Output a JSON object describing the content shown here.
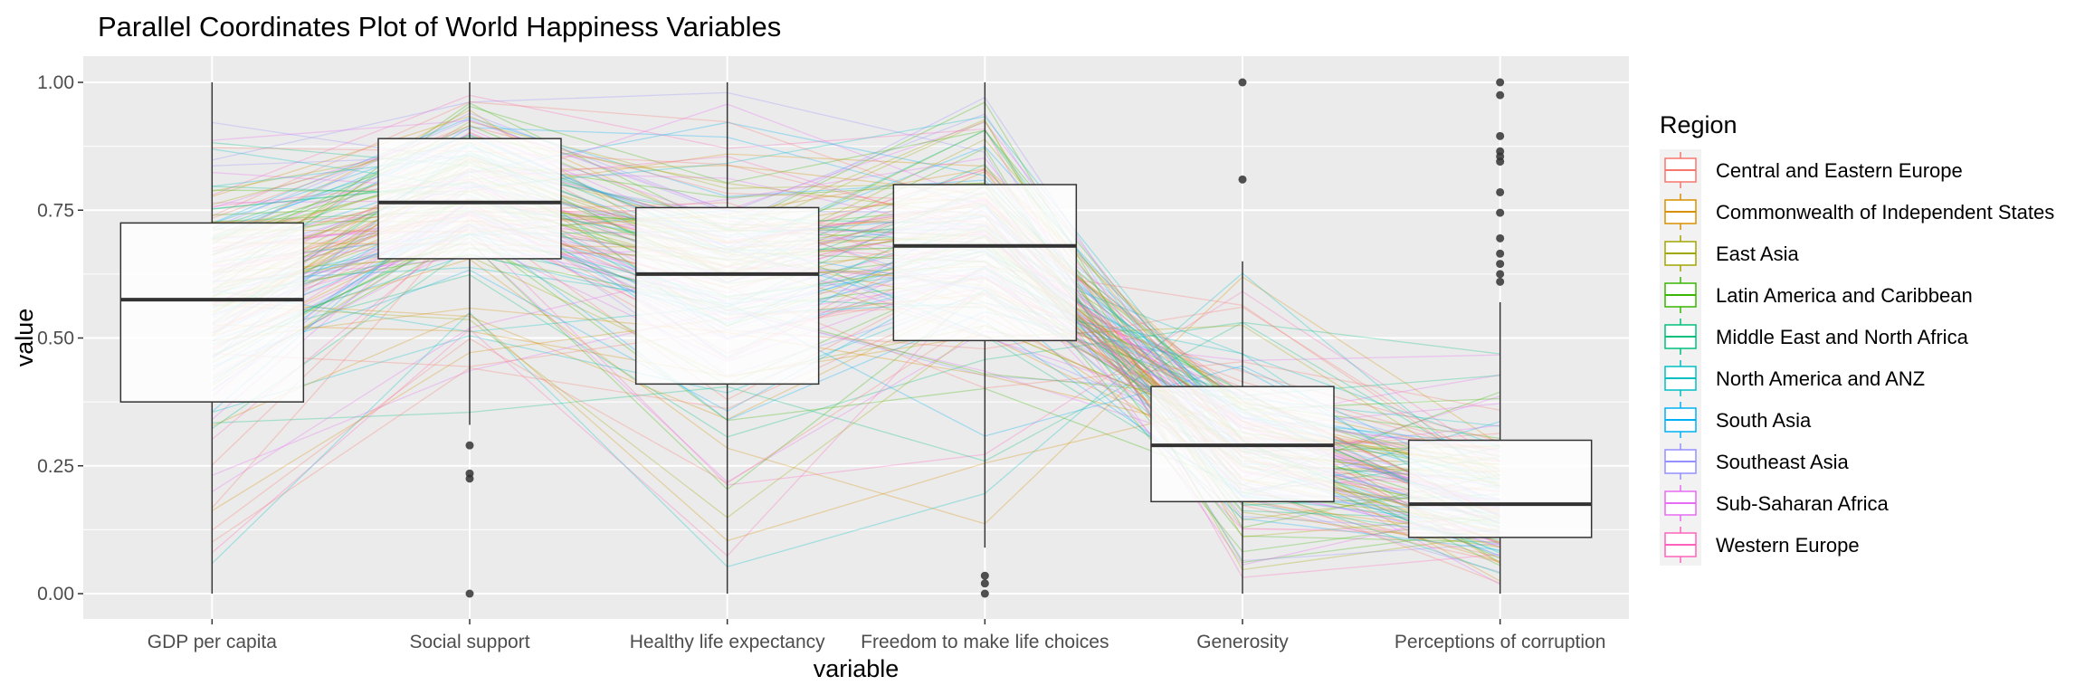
{
  "chart_data": {
    "type": "box",
    "title": "Parallel Coordinates Plot of World Happiness Variables",
    "xlabel": "variable",
    "ylabel": "value",
    "ylim": [
      0,
      1
    ],
    "yticks": [
      {
        "value": 0.0,
        "label": "0.00"
      },
      {
        "value": 0.25,
        "label": "0.25"
      },
      {
        "value": 0.5,
        "label": "0.50"
      },
      {
        "value": 0.75,
        "label": "0.75"
      },
      {
        "value": 1.0,
        "label": "1.00"
      }
    ],
    "categories": [
      "GDP per capita",
      "Social support",
      "Healthy life expectancy",
      "Freedom to make life choices",
      "Generosity",
      "Perceptions of corruption"
    ],
    "grid": true,
    "background": "#ebebeb",
    "boxes": [
      {
        "variable": "GDP per capita",
        "min": 0.0,
        "q1": 0.375,
        "median": 0.575,
        "q3": 0.725,
        "max": 1.0,
        "outliers": []
      },
      {
        "variable": "Social support",
        "min": 0.33,
        "q1": 0.655,
        "median": 0.765,
        "q3": 0.89,
        "max": 1.0,
        "outliers": [
          0.29,
          0.235,
          0.225,
          0.0
        ]
      },
      {
        "variable": "Healthy life expectancy",
        "min": 0.0,
        "q1": 0.41,
        "median": 0.625,
        "q3": 0.755,
        "max": 1.0,
        "outliers": []
      },
      {
        "variable": "Freedom to make life choices",
        "min": 0.09,
        "q1": 0.495,
        "median": 0.68,
        "q3": 0.8,
        "max": 1.0,
        "outliers": [
          0.035,
          0.02,
          0.0
        ]
      },
      {
        "variable": "Generosity",
        "min": 0.0,
        "q1": 0.18,
        "median": 0.29,
        "q3": 0.405,
        "max": 0.65,
        "outliers": [
          1.0,
          0.81
        ]
      },
      {
        "variable": "Perceptions of corruption",
        "min": 0.0,
        "q1": 0.11,
        "median": 0.175,
        "q3": 0.3,
        "max": 0.57,
        "outliers": [
          1.0,
          0.975,
          0.895,
          0.865,
          0.855,
          0.845,
          0.785,
          0.745,
          0.695,
          0.665,
          0.645,
          0.625,
          0.61
        ]
      }
    ],
    "legend": {
      "title": "Region",
      "placement": "right",
      "entries": [
        {
          "name": "Central and Eastern Europe",
          "color": "#F8766D"
        },
        {
          "name": "Commonwealth of Independent States",
          "color": "#D89000"
        },
        {
          "name": "East Asia",
          "color": "#A3A500"
        },
        {
          "name": "Latin America and Caribbean",
          "color": "#39B600"
        },
        {
          "name": "Middle East and North Africa",
          "color": "#00BF7D"
        },
        {
          "name": "North America and ANZ",
          "color": "#00BFC4"
        },
        {
          "name": "South Asia",
          "color": "#00B0F6"
        },
        {
          "name": "Southeast Asia",
          "color": "#9590FF"
        },
        {
          "name": "Sub-Saharan Africa",
          "color": "#E76BF3"
        },
        {
          "name": "Western Europe",
          "color": "#FF62BC"
        }
      ]
    }
  }
}
